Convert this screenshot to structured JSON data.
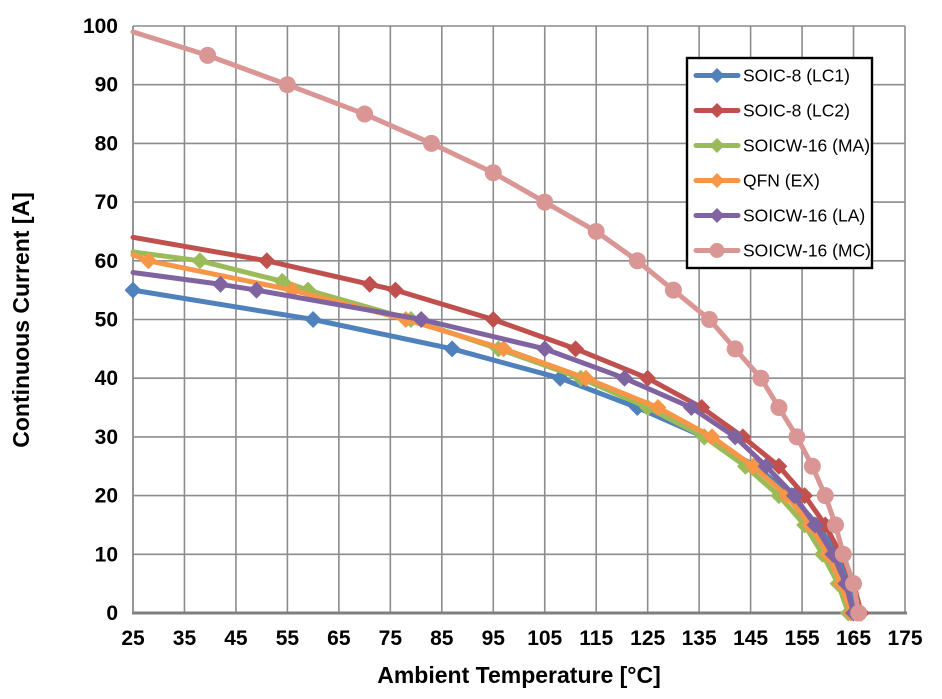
{
  "chart_data": {
    "type": "line",
    "title": "",
    "xlabel": "Ambient Temperature [°C]",
    "ylabel": "Continuous Current [A]",
    "xlim": [
      25,
      175
    ],
    "ylim": [
      0,
      100
    ],
    "xticks": [
      25,
      35,
      45,
      55,
      65,
      75,
      85,
      95,
      105,
      115,
      125,
      135,
      145,
      155,
      165,
      175
    ],
    "yticks": [
      0,
      10,
      20,
      30,
      40,
      50,
      60,
      70,
      80,
      90,
      100
    ],
    "grid": true,
    "legend": {
      "position": "top-right-inside",
      "border_color": "#000000",
      "background": "#FFFFFF"
    },
    "styles": {
      "gridline_color": "#8C8C8C",
      "axis_line_color": "#7F7F7F",
      "background": "#FFFFFF",
      "line_width": 5
    },
    "series": [
      {
        "name": "SOIC-8 (LC1)",
        "color": "#4F81BD",
        "marker": "diamond",
        "first_marker_index": 0,
        "points": [
          [
            25,
            55
          ],
          [
            60,
            50
          ],
          [
            87,
            45
          ],
          [
            108,
            40
          ],
          [
            123,
            35
          ],
          [
            136,
            30
          ],
          [
            146,
            25
          ],
          [
            153,
            20
          ],
          [
            158,
            15
          ],
          [
            162,
            10
          ],
          [
            164,
            5
          ],
          [
            165.5,
            0
          ]
        ]
      },
      {
        "name": "SOIC-8 (LC2)",
        "color": "#C0504D",
        "marker": "diamond",
        "first_marker_index": 1,
        "points": [
          [
            25,
            64
          ],
          [
            51,
            60
          ],
          [
            71,
            56
          ],
          [
            76,
            55
          ],
          [
            95,
            50
          ],
          [
            111,
            45
          ],
          [
            125,
            40
          ],
          [
            135.5,
            35
          ],
          [
            143.5,
            30
          ],
          [
            150.5,
            25
          ],
          [
            155.5,
            20
          ],
          [
            159.5,
            15
          ],
          [
            162.5,
            10
          ],
          [
            165,
            5
          ],
          [
            166.5,
            0
          ]
        ]
      },
      {
        "name": "SOICW-16 (MA)",
        "color": "#9BBB59",
        "marker": "diamond",
        "first_marker_index": 1,
        "points": [
          [
            25,
            61.5
          ],
          [
            38,
            60
          ],
          [
            54,
            56.5
          ],
          [
            59,
            55
          ],
          [
            79,
            50
          ],
          [
            96,
            45
          ],
          [
            112,
            40
          ],
          [
            125,
            35
          ],
          [
            136,
            30
          ],
          [
            144,
            25
          ],
          [
            150.5,
            20
          ],
          [
            155.5,
            15
          ],
          [
            159,
            10
          ],
          [
            162,
            5
          ],
          [
            164,
            0
          ]
        ]
      },
      {
        "name": "QFN (EX)",
        "color": "#F79646",
        "marker": "diamond",
        "first_marker_index": 1,
        "points": [
          [
            25,
            61
          ],
          [
            28,
            60
          ],
          [
            56,
            55
          ],
          [
            78,
            50
          ],
          [
            97,
            45
          ],
          [
            113,
            40
          ],
          [
            127,
            35
          ],
          [
            137.5,
            30
          ],
          [
            145.5,
            25
          ],
          [
            152,
            20
          ],
          [
            156.5,
            15
          ],
          [
            160,
            10
          ],
          [
            162.5,
            5
          ],
          [
            164.5,
            0
          ]
        ]
      },
      {
        "name": "SOICW-16 (LA)",
        "color": "#8064A2",
        "marker": "diamond",
        "first_marker_index": 1,
        "points": [
          [
            25,
            58
          ],
          [
            42,
            56
          ],
          [
            49,
            55
          ],
          [
            81,
            50
          ],
          [
            105,
            45
          ],
          [
            120.5,
            40
          ],
          [
            133.5,
            35
          ],
          [
            142,
            30
          ],
          [
            148,
            25
          ],
          [
            153.5,
            20
          ],
          [
            157.5,
            15
          ],
          [
            161,
            10
          ],
          [
            163.5,
            5
          ],
          [
            165,
            0
          ]
        ]
      },
      {
        "name": "SOICW-16 (MC)",
        "color": "#D99694",
        "marker": "circle",
        "first_marker_index": 1,
        "points": [
          [
            25,
            99
          ],
          [
            39.5,
            95
          ],
          [
            55,
            90
          ],
          [
            70,
            85
          ],
          [
            83,
            80
          ],
          [
            95,
            75
          ],
          [
            105,
            70
          ],
          [
            115,
            65
          ],
          [
            123,
            60
          ],
          [
            130,
            55
          ],
          [
            137,
            50
          ],
          [
            142,
            45
          ],
          [
            147,
            40
          ],
          [
            150.5,
            35
          ],
          [
            154,
            30
          ],
          [
            157,
            25
          ],
          [
            159.5,
            20
          ],
          [
            161.5,
            15
          ],
          [
            163,
            10
          ],
          [
            165,
            5
          ],
          [
            166,
            0
          ]
        ]
      }
    ]
  }
}
